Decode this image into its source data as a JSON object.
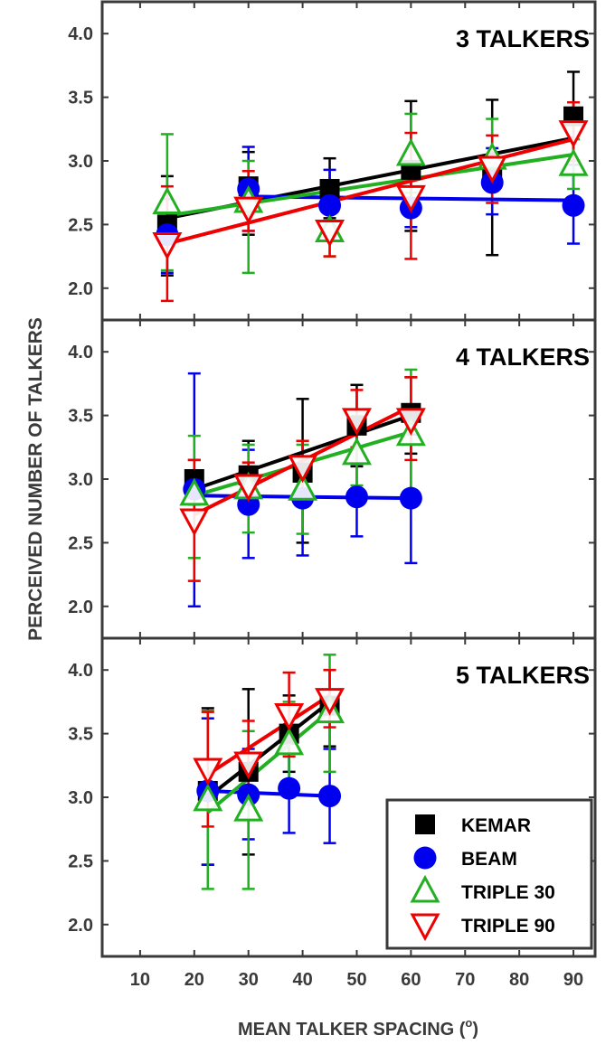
{
  "figure": {
    "ylabel": "PERCEIVED NUMBER OF TALKERS",
    "xlabel": "MEAN TALKER SPACING (",
    "xlabel_sup": "o",
    "xlabel_close": ")"
  },
  "colors": {
    "KEMAR": "#000000",
    "BEAM": "#0000ee",
    "TRIPLE 30": "#22b022",
    "TRIPLE 90": "#ee0000",
    "frame": "#3a3a3a",
    "tick_text": "#3a3a3a"
  },
  "legend": {
    "placement": "bottom-right of third panel",
    "items": [
      {
        "label": "KEMAR",
        "marker": "square"
      },
      {
        "label": "BEAM",
        "marker": "circle"
      },
      {
        "label": "TRIPLE 30",
        "marker": "triangle-up"
      },
      {
        "label": "TRIPLE 90",
        "marker": "triangle-down"
      }
    ]
  },
  "chart_data": [
    {
      "type": "scatter",
      "title": "3 TALKERS",
      "xlim": [
        3,
        94
      ],
      "ylim": [
        1.75,
        4.25
      ],
      "xticks": [
        10,
        20,
        30,
        40,
        50,
        60,
        70,
        80,
        90
      ],
      "yticks": [
        2.0,
        2.5,
        3.0,
        3.5,
        4.0
      ],
      "series": [
        {
          "name": "KEMAR",
          "marker": "square",
          "points": [
            [
              15,
              2.5,
              2.1,
              2.88
            ],
            [
              30,
              2.8,
              2.42,
              3.07
            ],
            [
              45,
              2.78,
              2.55,
              3.02
            ],
            [
              60,
              2.93,
              2.45,
              3.47
            ],
            [
              75,
              2.87,
              2.26,
              3.48
            ],
            [
              90,
              3.35,
              3.0,
              3.7
            ]
          ],
          "fit": [
            [
              15,
              2.55
            ],
            [
              90,
              3.18
            ]
          ]
        },
        {
          "name": "BEAM",
          "marker": "circle",
          "points": [
            [
              15,
              2.42,
              2.12,
              2.7
            ],
            [
              30,
              2.78,
              2.45,
              3.11
            ],
            [
              45,
              2.65,
              2.37,
              2.93
            ],
            [
              60,
              2.63,
              2.48,
              2.92
            ],
            [
              75,
              2.83,
              2.58,
              3.1
            ],
            [
              90,
              2.65,
              2.35,
              2.97
            ]
          ],
          "fit": [
            [
              30,
              2.72
            ],
            [
              90,
              2.69
            ]
          ]
        },
        {
          "name": "TRIPLE 30",
          "marker": "triangle-up",
          "points": [
            [
              15,
              2.67,
              2.14,
              3.21
            ],
            [
              30,
              2.68,
              2.12,
              3.0
            ],
            [
              45,
              2.45,
              2.25,
              2.65
            ],
            [
              60,
              3.05,
              2.75,
              3.37
            ],
            [
              75,
              3.02,
              2.7,
              3.33
            ],
            [
              90,
              2.97,
              2.78,
              3.17
            ]
          ],
          "fit": [
            [
              15,
              2.57
            ],
            [
              90,
              3.05
            ]
          ]
        },
        {
          "name": "TRIPLE 90",
          "marker": "triangle-down",
          "points": [
            [
              15,
              2.35,
              1.9,
              2.8
            ],
            [
              30,
              2.63,
              2.45,
              2.92
            ],
            [
              45,
              2.45,
              2.25,
              2.65
            ],
            [
              60,
              2.72,
              2.23,
              3.22
            ],
            [
              75,
              2.95,
              2.67,
              3.2
            ],
            [
              90,
              3.23,
              3.0,
              3.46
            ]
          ],
          "fit": [
            [
              15,
              2.35
            ],
            [
              90,
              3.17
            ]
          ]
        }
      ]
    },
    {
      "type": "scatter",
      "title": "4 TALKERS",
      "xlim": [
        3,
        94
      ],
      "ylim": [
        1.75,
        4.25
      ],
      "xticks": [
        10,
        20,
        30,
        40,
        50,
        60,
        70,
        80,
        90
      ],
      "yticks": [
        2.0,
        2.5,
        3.0,
        3.5,
        4.0
      ],
      "series": [
        {
          "name": "KEMAR",
          "marker": "square",
          "points": [
            [
              20,
              3.0,
              2.8,
              3.15
            ],
            [
              30,
              3.03,
              2.8,
              3.3
            ],
            [
              40,
              3.05,
              2.5,
              3.63
            ],
            [
              50,
              3.42,
              3.1,
              3.74
            ],
            [
              60,
              3.52,
              3.2,
              3.8
            ]
          ],
          "fit": [
            [
              20,
              2.92
            ],
            [
              60,
              3.5
            ]
          ]
        },
        {
          "name": "BEAM",
          "marker": "circle",
          "points": [
            [
              20,
              2.92,
              2.0,
              3.83
            ],
            [
              30,
              2.8,
              2.38,
              3.23
            ],
            [
              40,
              2.85,
              2.4,
              3.3
            ],
            [
              50,
              2.86,
              2.55,
              3.12
            ],
            [
              60,
              2.85,
              2.34,
              3.35
            ]
          ],
          "fit": [
            [
              20,
              2.87
            ],
            [
              60,
              2.85
            ]
          ]
        },
        {
          "name": "TRIPLE 30",
          "marker": "triangle-up",
          "points": [
            [
              20,
              2.88,
              2.38,
              3.34
            ],
            [
              30,
              2.93,
              2.58,
              3.27
            ],
            [
              40,
              2.92,
              2.57,
              3.27
            ],
            [
              50,
              3.2,
              2.95,
              3.5
            ],
            [
              60,
              3.35,
              2.88,
              3.86
            ]
          ],
          "fit": [
            [
              20,
              2.87
            ],
            [
              60,
              3.37
            ]
          ]
        },
        {
          "name": "TRIPLE 90",
          "marker": "triangle-down",
          "points": [
            [
              20,
              2.68,
              2.2,
              3.15
            ],
            [
              30,
              2.95,
              2.75,
              3.13
            ],
            [
              40,
              3.1,
              2.9,
              3.3
            ],
            [
              50,
              3.47,
              3.25,
              3.7
            ],
            [
              60,
              3.47,
              3.15,
              3.8
            ]
          ],
          "fit": [
            [
              20,
              2.72
            ],
            [
              60,
              3.57
            ]
          ]
        }
      ]
    },
    {
      "type": "scatter",
      "title": "5 TALKERS",
      "xlim": [
        3,
        94
      ],
      "ylim": [
        1.75,
        4.25
      ],
      "xticks": [
        10,
        20,
        30,
        40,
        50,
        60,
        70,
        80,
        90
      ],
      "yticks": [
        2.0,
        2.5,
        3.0,
        3.5,
        4.0
      ],
      "series": [
        {
          "name": "KEMAR",
          "marker": "square",
          "points": [
            [
              22.5,
              3.05,
              2.47,
              3.7
            ],
            [
              30,
              3.2,
              2.55,
              3.85
            ],
            [
              37.5,
              3.5,
              3.2,
              3.8
            ],
            [
              45,
              3.72,
              3.4,
              4.0
            ]
          ],
          "fit": [
            [
              22.5,
              3.0
            ],
            [
              45,
              3.75
            ]
          ]
        },
        {
          "name": "BEAM",
          "marker": "circle",
          "points": [
            [
              22.5,
              3.05,
              2.47,
              3.62
            ],
            [
              30,
              3.02,
              2.67,
              3.38
            ],
            [
              37.5,
              3.07,
              2.72,
              3.42
            ],
            [
              45,
              3.01,
              2.64,
              3.38
            ]
          ],
          "fit": [
            [
              22.5,
              3.05
            ],
            [
              45,
              3.01
            ]
          ]
        },
        {
          "name": "TRIPLE 30",
          "marker": "triangle-up",
          "points": [
            [
              22.5,
              2.98,
              2.28,
              3.68
            ],
            [
              30,
              2.9,
              2.28,
              3.52
            ],
            [
              37.5,
              3.42,
              3.1,
              3.75
            ],
            [
              45,
              3.67,
              3.2,
              4.12
            ]
          ],
          "fit": [
            [
              22.5,
              2.88
            ],
            [
              45,
              3.68
            ]
          ]
        },
        {
          "name": "TRIPLE 90",
          "marker": "triangle-down",
          "points": [
            [
              22.5,
              3.22,
              2.77,
              3.67
            ],
            [
              30,
              3.27,
              2.97,
              3.6
            ],
            [
              37.5,
              3.65,
              3.32,
              3.98
            ],
            [
              45,
              3.77,
              3.55,
              4.0
            ]
          ],
          "fit": [
            [
              22.5,
              3.18
            ],
            [
              45,
              3.8
            ]
          ]
        }
      ]
    }
  ]
}
